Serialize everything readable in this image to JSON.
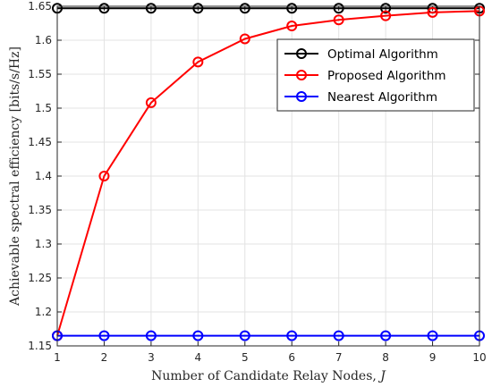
{
  "chart_data": {
    "type": "line",
    "xlabel": "Number of Candidate Relay Nodes, ",
    "xlabel_var": "J",
    "ylabel": "Achievable spectral efficiency [bits/s/Hz]",
    "xlim": [
      1,
      10
    ],
    "ylim": [
      1.15,
      1.65
    ],
    "x_ticks": [
      1,
      2,
      3,
      4,
      5,
      6,
      7,
      8,
      9,
      10
    ],
    "y_ticks": [
      1.15,
      1.2,
      1.25,
      1.3,
      1.35,
      1.4,
      1.45,
      1.5,
      1.55,
      1.6,
      1.65
    ],
    "y_tick_labels": [
      "1.15",
      "1.2",
      "1.25",
      "1.3",
      "1.35",
      "1.4",
      "1.45",
      "1.5",
      "1.55",
      "1.6",
      "1.65"
    ],
    "grid": true,
    "legend_position": "top-right",
    "x": [
      1,
      2,
      3,
      4,
      5,
      6,
      7,
      8,
      9,
      10
    ],
    "series": [
      {
        "name": "Optimal Algorithm",
        "color": "#000000",
        "marker": "circle",
        "values": [
          1.647,
          1.647,
          1.647,
          1.647,
          1.647,
          1.647,
          1.647,
          1.647,
          1.647,
          1.647
        ]
      },
      {
        "name": "Proposed Algorithm",
        "color": "#ff0000",
        "marker": "circle",
        "values": [
          1.165,
          1.4,
          1.508,
          1.568,
          1.602,
          1.621,
          1.63,
          1.636,
          1.641,
          1.643
        ]
      },
      {
        "name": "Nearest Algorithm",
        "color": "#0000ff",
        "marker": "circle",
        "values": [
          1.165,
          1.165,
          1.165,
          1.165,
          1.165,
          1.165,
          1.165,
          1.165,
          1.165,
          1.165
        ]
      }
    ]
  }
}
